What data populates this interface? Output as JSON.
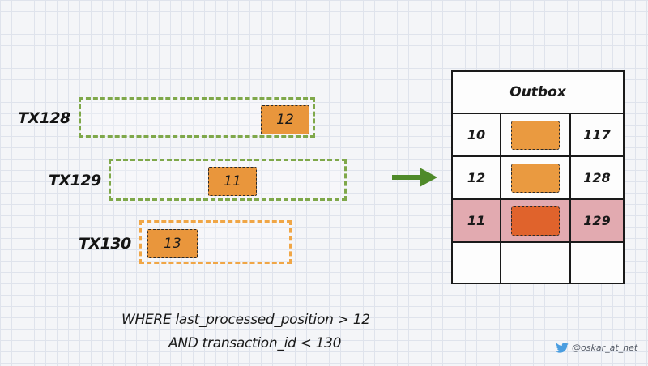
{
  "transactions": [
    {
      "label": "TX128",
      "position": "12"
    },
    {
      "label": "TX129",
      "position": "11"
    },
    {
      "label": "TX130",
      "position": "13"
    }
  ],
  "outbox": {
    "title": "Outbox",
    "rows": [
      {
        "position": "10",
        "transaction_id": "117"
      },
      {
        "position": "12",
        "transaction_id": "128"
      },
      {
        "position": "11",
        "transaction_id": "129"
      },
      {
        "position": "",
        "transaction_id": ""
      }
    ]
  },
  "query": {
    "line1": "WHERE last_processed_position > 12",
    "line2": "AND transaction_id < 130"
  },
  "credit": "@oskar_at_net",
  "colors": {
    "inactive_border": "#7fa84a",
    "active_border": "#f0a646",
    "chip": "#e9963c",
    "highlight_row": "#e2aab0",
    "highlight_chip": "#e0632c",
    "arrow": "#4f8a2a"
  },
  "icons": [
    "arrow-right-icon",
    "twitter-bird-icon"
  ]
}
